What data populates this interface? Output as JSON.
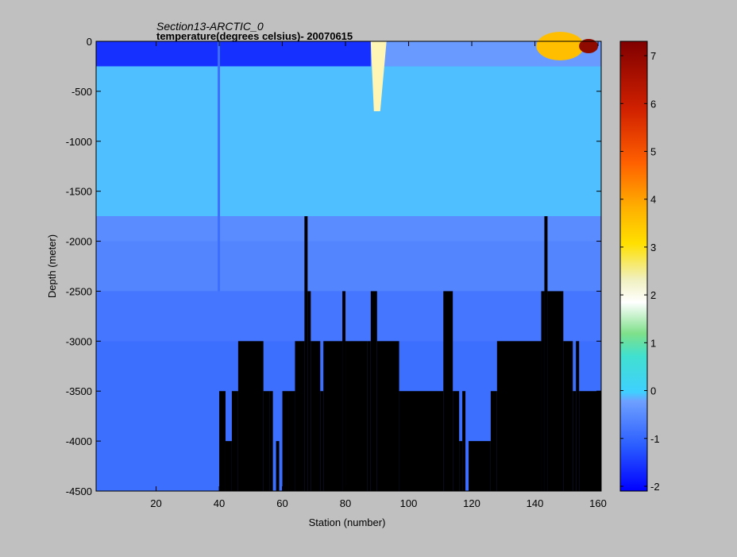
{
  "chart_data": {
    "type": "heatmap",
    "title": "Section13-ARCTIC_0",
    "subtitle": "temperature(degrees  celsius)- 20070615",
    "xlabel": "Station (number)",
    "ylabel": "Depth (meter)",
    "xlim": [
      1,
      161
    ],
    "ylim": [
      -4500,
      0
    ],
    "x_ticks": [
      20,
      40,
      60,
      80,
      100,
      120,
      140,
      160
    ],
    "y_ticks": [
      0,
      -500,
      -1000,
      -1500,
      -2000,
      -2500,
      -3000,
      -3500,
      -4000,
      -4500
    ],
    "colorbar": {
      "range": [
        -2.1,
        7.3
      ],
      "ticks": [
        -2,
        -1,
        0,
        1,
        2,
        3,
        4,
        5,
        6,
        7
      ],
      "colormap": "jet"
    },
    "grid": false,
    "depth_levels": [
      0,
      -250,
      -1750,
      -2000,
      -2500,
      -3000,
      -3500,
      -4000,
      -4500
    ],
    "representative_values": {
      "surface_layer_west": -1.6,
      "surface_layer_east_max": 7.0,
      "intermediate_atlantic_water": -0.1,
      "deep_water_2000m": -0.6,
      "deep_water_2500m": -0.8,
      "deep_water_3000m": -0.9,
      "bottom_water": -0.9
    },
    "bathymetry": [
      {
        "x": [
          40,
          42
        ],
        "depth": -3500
      },
      {
        "x": [
          42,
          44
        ],
        "depth": -4000
      },
      {
        "x": [
          44,
          46
        ],
        "depth": -3500
      },
      {
        "x": [
          46,
          54
        ],
        "depth": -3000
      },
      {
        "x": [
          54,
          56
        ],
        "depth": -3500
      },
      {
        "x": [
          56,
          57
        ],
        "depth": -3500
      },
      {
        "x": [
          58,
          59
        ],
        "depth": -4000
      },
      {
        "x": [
          60,
          62
        ],
        "depth": -3500
      },
      {
        "x": [
          62,
          64
        ],
        "depth": -3500
      },
      {
        "x": [
          64,
          67
        ],
        "depth": -3000
      },
      {
        "x": [
          67,
          68
        ],
        "depth": -1750
      },
      {
        "x": [
          68,
          69
        ],
        "depth": -2500
      },
      {
        "x": [
          69,
          72
        ],
        "depth": -3000
      },
      {
        "x": [
          72,
          73
        ],
        "depth": -3500
      },
      {
        "x": [
          73,
          79
        ],
        "depth": -3000
      },
      {
        "x": [
          79,
          80
        ],
        "depth": -2500
      },
      {
        "x": [
          80,
          87
        ],
        "depth": -3000
      },
      {
        "x": [
          87,
          88
        ],
        "depth": -3000
      },
      {
        "x": [
          88,
          90
        ],
        "depth": -2500
      },
      {
        "x": [
          90,
          97
        ],
        "depth": -3000
      },
      {
        "x": [
          97,
          111
        ],
        "depth": -3500
      },
      {
        "x": [
          111,
          114
        ],
        "depth": -2500
      },
      {
        "x": [
          114,
          116
        ],
        "depth": -3500
      },
      {
        "x": [
          116,
          117
        ],
        "depth": -4000
      },
      {
        "x": [
          117,
          118
        ],
        "depth": -3500
      },
      {
        "x": [
          119,
          126
        ],
        "depth": -4000
      },
      {
        "x": [
          126,
          128
        ],
        "depth": -3500
      },
      {
        "x": [
          128,
          142
        ],
        "depth": -3000
      },
      {
        "x": [
          142,
          143
        ],
        "depth": -2500
      },
      {
        "x": [
          143,
          144
        ],
        "depth": -1750
      },
      {
        "x": [
          144,
          149
        ],
        "depth": -2500
      },
      {
        "x": [
          149,
          152
        ],
        "depth": -3000
      },
      {
        "x": [
          152,
          153
        ],
        "depth": -3500
      },
      {
        "x": [
          153,
          154
        ],
        "depth": -3000
      },
      {
        "x": [
          154,
          161
        ],
        "depth": -3500
      }
    ]
  }
}
